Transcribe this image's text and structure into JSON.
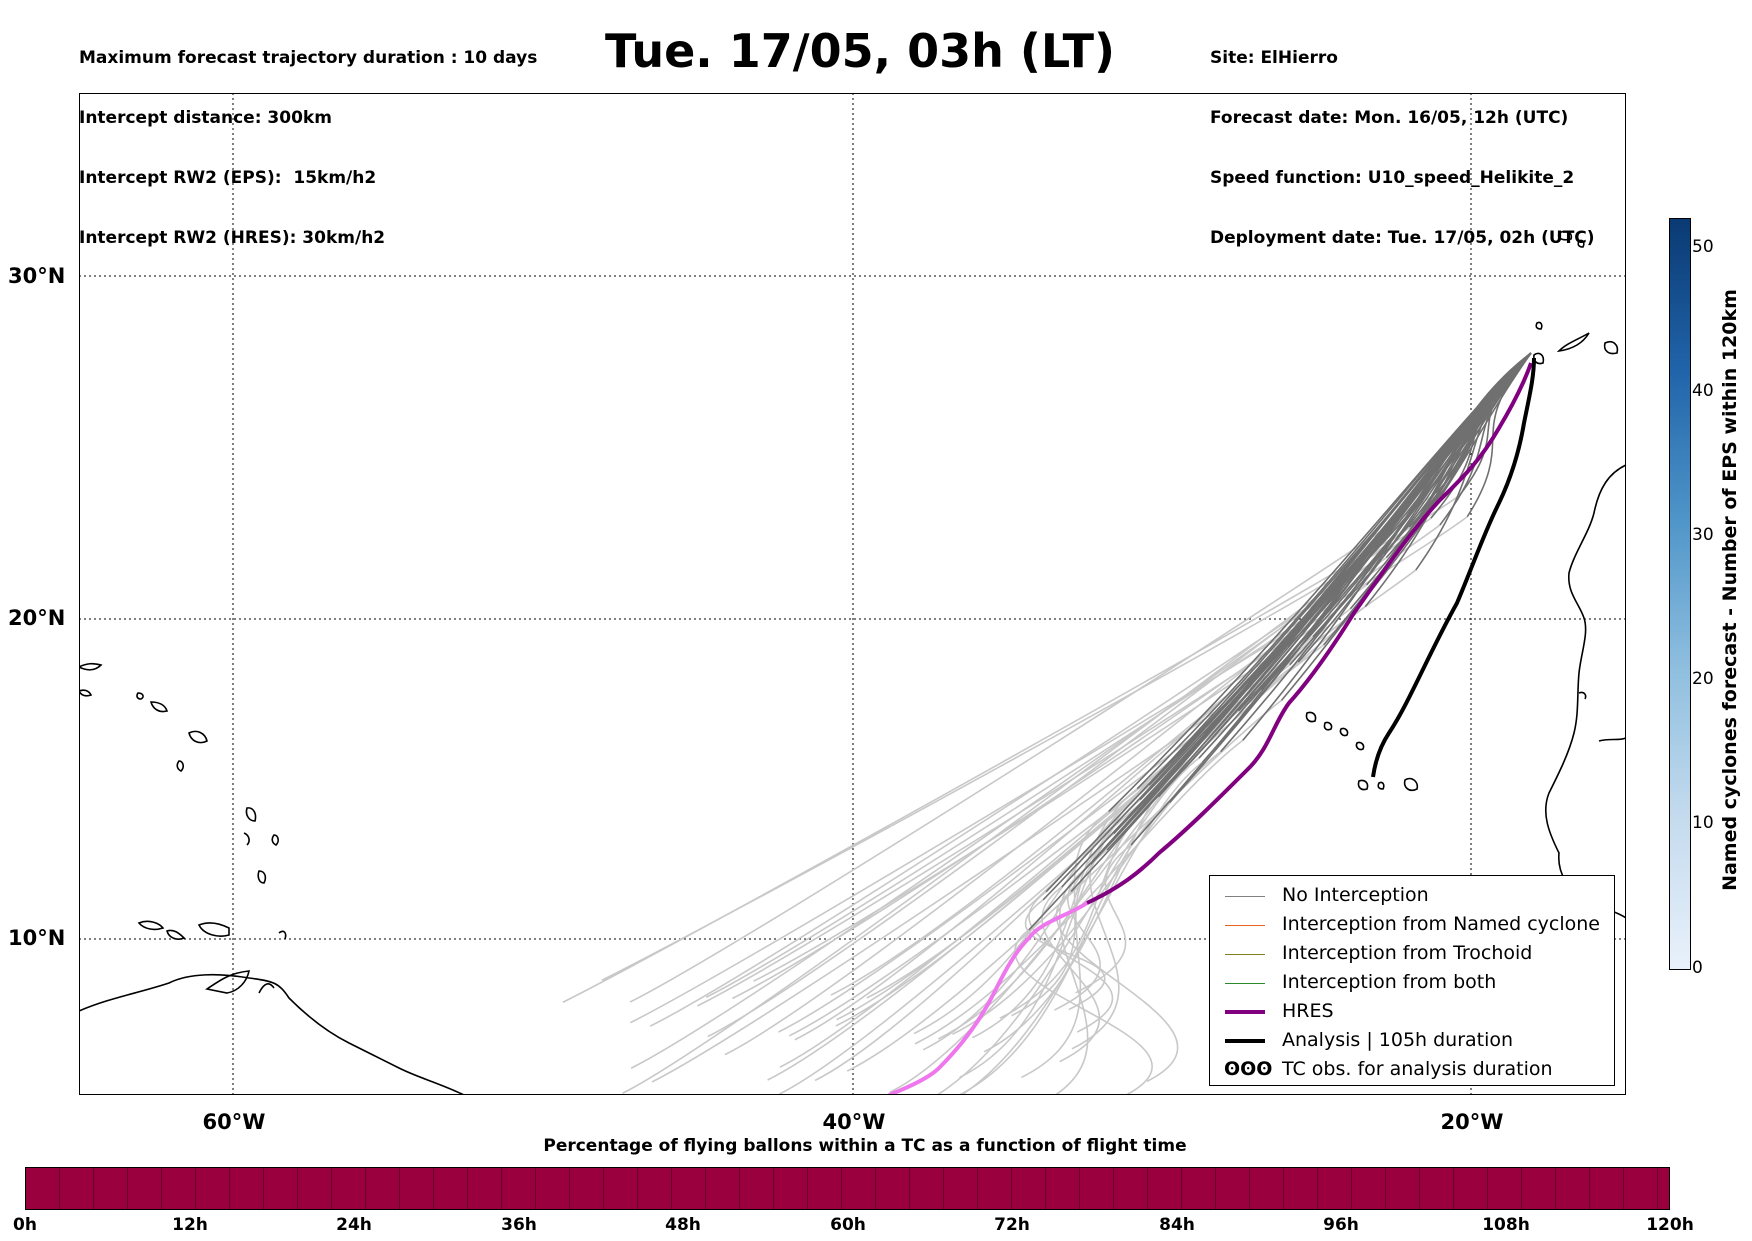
{
  "header": {
    "left_lines": [
      "Maximum forecast trajectory duration : 10 days",
      "Intercept distance: 300km",
      "Intercept RW2 (EPS):  15km/h2",
      "Intercept RW2 (HRES): 30km/h2"
    ],
    "title": "Tue. 17/05, 03h (LT)",
    "right_lines": [
      "Site: ElHierro",
      "Forecast date: Mon. 16/05, 12h (UTC)",
      "Speed function: U10_speed_Helikite_2",
      "Deployment date: Tue. 17/05, 02h (UTC)"
    ]
  },
  "map": {
    "lat_labels": [
      "30°N",
      "20°N",
      "10°N"
    ],
    "lon_labels": [
      "60°W",
      "40°W",
      "20°W"
    ],
    "lon_range": [
      -65,
      -15
    ],
    "lat_range": [
      5.4,
      34.7
    ],
    "gridlines": {
      "lons": [
        -60,
        -40,
        -20
      ],
      "lats": [
        30,
        20,
        10
      ]
    }
  },
  "legend": {
    "items": [
      {
        "label": "No Interception",
        "color": "#808080"
      },
      {
        "label": "Interception from Named cyclone",
        "color": "#e8641f"
      },
      {
        "label": "Interception from Trochoid",
        "color": "#808020"
      },
      {
        "label": "Interception from both",
        "color": "#2a8a2a"
      },
      {
        "label": "HRES",
        "color": "#800080"
      },
      {
        "label": "Analysis | 105h duration",
        "color": "#000000"
      },
      {
        "label": "TC obs. for analysis duration",
        "symbol": "ʘʘʘ"
      }
    ]
  },
  "colorbar": {
    "title": "Named cyclones forecast - Number of EPS within 120km",
    "ticks": [
      "0",
      "10",
      "20",
      "30",
      "40",
      "50"
    ],
    "range": [
      0,
      52
    ]
  },
  "percentage_bar": {
    "title": "Percentage of flying ballons within a TC as a function of flight time",
    "ticks": [
      "0h",
      "12h",
      "24h",
      "36h",
      "48h",
      "60h",
      "72h",
      "84h",
      "96h",
      "108h",
      "120h"
    ],
    "fill_color": "#9b003e"
  }
}
